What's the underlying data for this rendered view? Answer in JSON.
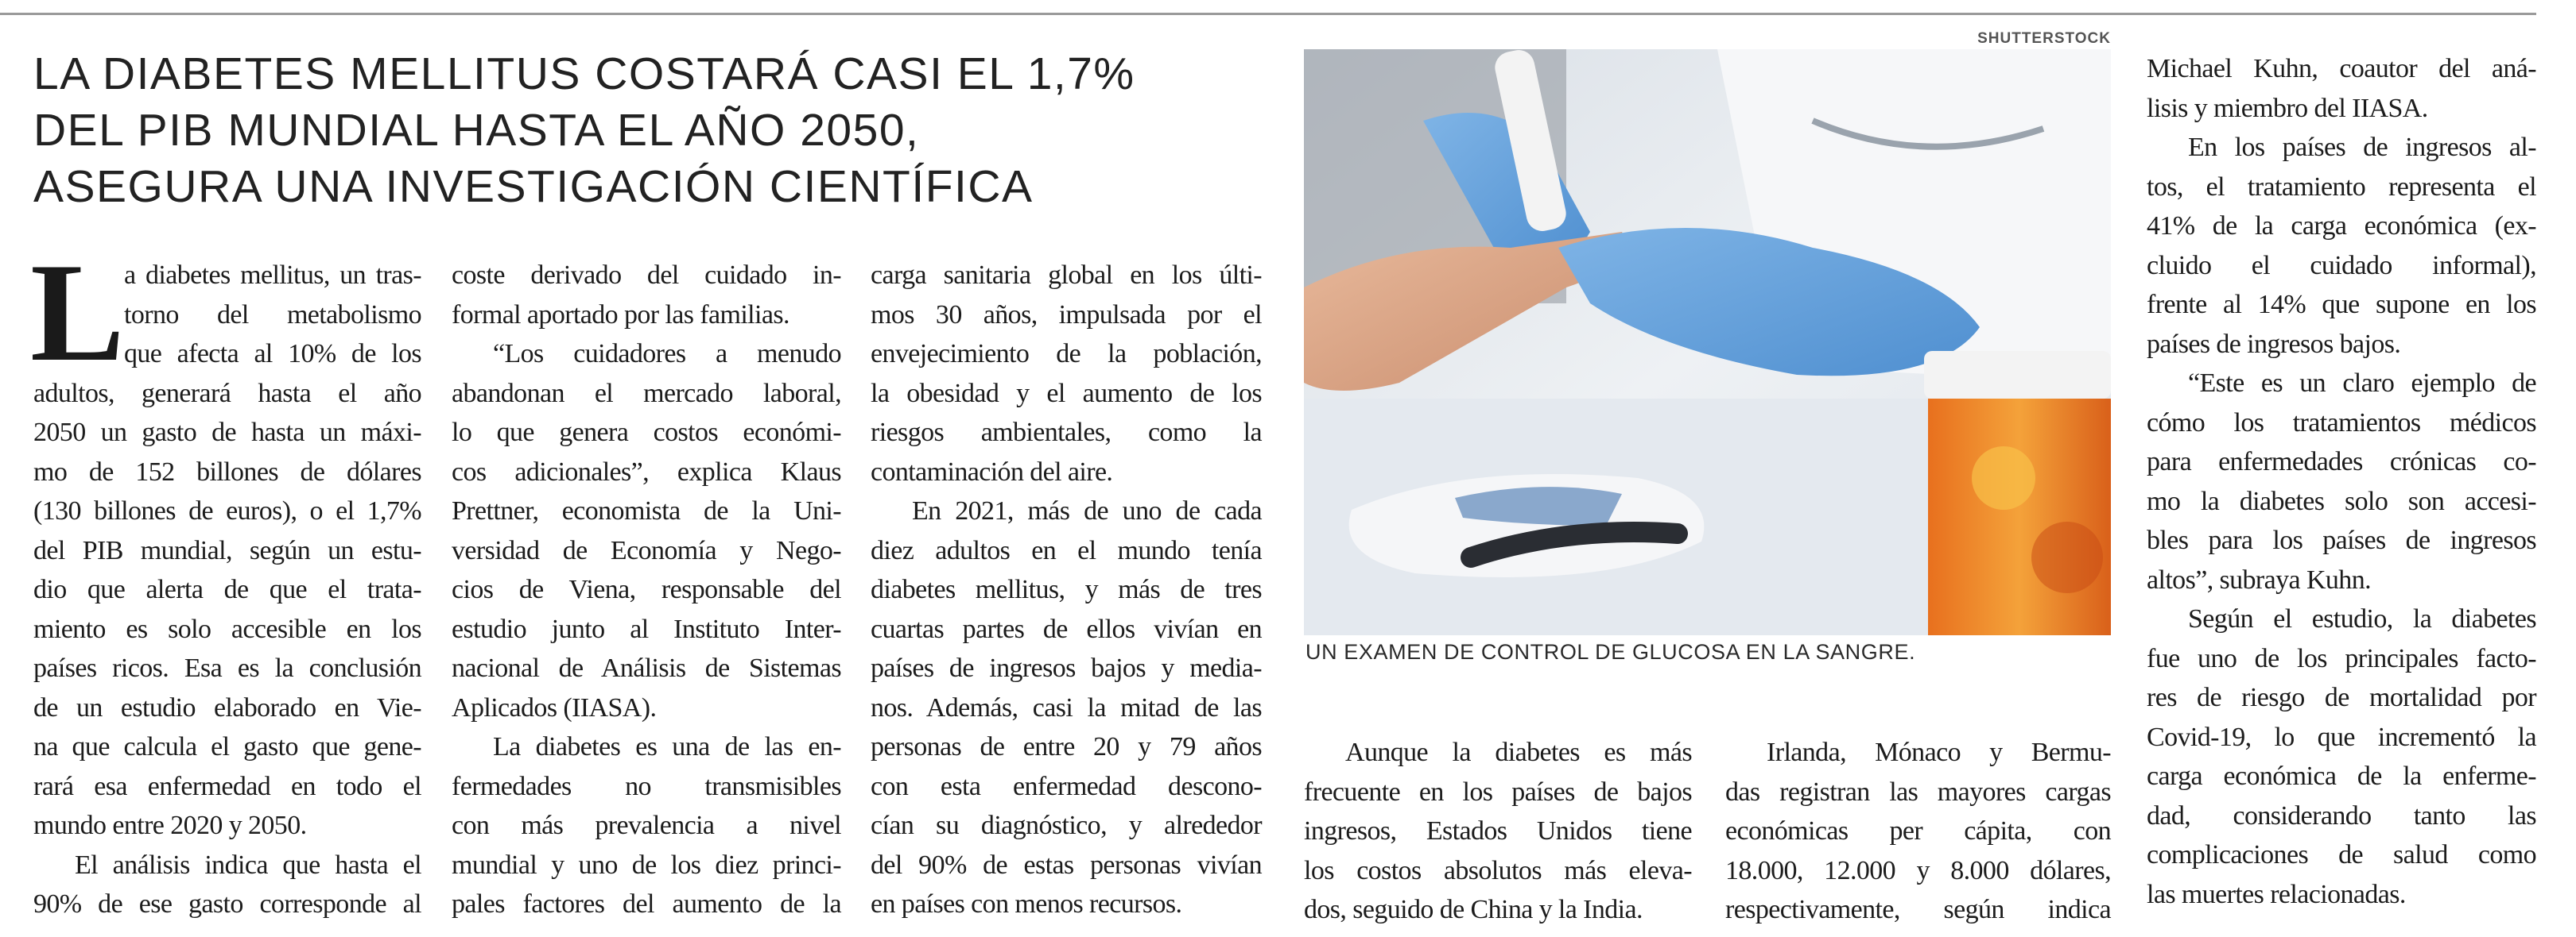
{
  "headline": [
    "LA DIABETES MELLITUS COSTARÁ CASI EL 1,7%",
    "DEL PIB MUNDIAL HASTA EL AÑO 2050,",
    "ASEGURA UNA INVESTIGACIÓN CIENTÍFICA"
  ],
  "dropcap": "L",
  "photo": {
    "credit": "SHUTTERSTOCK",
    "caption": "UN EXAMEN DE CONTROL DE GLUCOSA EN LA SANGRE."
  },
  "columns": [
    [
      {
        "t": "a diabetes mellitus, un tras-",
        "k": "drop"
      },
      {
        "t": "torno del metabolismo",
        "k": "drop"
      },
      {
        "t": "que afecta al 10% de los",
        "k": "drop"
      },
      {
        "t": "adultos, generará hasta el año"
      },
      {
        "t": "2050 un gasto de hasta un máxi-"
      },
      {
        "t": "mo de 152 billones de dólares"
      },
      {
        "t": "(130 billones de euros), o el 1,7%"
      },
      {
        "t": "del PIB mundial, según un estu-"
      },
      {
        "t": "dio que alerta de que el trata-"
      },
      {
        "t": "miento es solo accesible en los"
      },
      {
        "t": "países ricos. Esa es la conclusión"
      },
      {
        "t": "de un estudio elaborado en Vie-"
      },
      {
        "t": "na que calcula el gasto que gene-"
      },
      {
        "t": "rará esa enfermedad en todo el"
      },
      {
        "t": "mundo entre 2020 y 2050.",
        "k": "end"
      },
      {
        "t": "El análisis indica que hasta el",
        "k": "indent"
      },
      {
        "t": "90% de ese gasto corresponde al"
      }
    ],
    [
      {
        "t": "coste derivado del cuidado in-"
      },
      {
        "t": "formal aportado por las familias.",
        "k": "end"
      },
      {
        "t": "“Los cuidadores a menudo",
        "k": "indent"
      },
      {
        "t": "abandonan el mercado laboral,"
      },
      {
        "t": "lo que genera costos económi-"
      },
      {
        "t": "cos adicionales”, explica Klaus"
      },
      {
        "t": "Prettner, economista de la Uni-"
      },
      {
        "t": "versidad de Economía y Nego-"
      },
      {
        "t": "cios de Viena, responsable del"
      },
      {
        "t": "estudio junto al Instituto Inter-"
      },
      {
        "t": "nacional de Análisis de Sistemas"
      },
      {
        "t": "Aplicados (IIASA).",
        "k": "end"
      },
      {
        "t": "La diabetes es una de las en-",
        "k": "indent"
      },
      {
        "t": "fermedades no transmisibles"
      },
      {
        "t": "con más prevalencia a nivel"
      },
      {
        "t": "mundial y uno de los diez princi-"
      },
      {
        "t": "pales factores del aumento de la"
      }
    ],
    [
      {
        "t": "carga sanitaria global en los últi-"
      },
      {
        "t": "mos 30 años, impulsada por el"
      },
      {
        "t": "envejecimiento de la población,"
      },
      {
        "t": "la obesidad y el aumento de los"
      },
      {
        "t": "riesgos ambientales, como la"
      },
      {
        "t": "contaminación del aire.",
        "k": "end"
      },
      {
        "t": "En 2021, más de uno de cada",
        "k": "indent"
      },
      {
        "t": "diez adultos en el mundo tenía"
      },
      {
        "t": "diabetes mellitus, y más de tres"
      },
      {
        "t": "cuartas partes de ellos vivían en"
      },
      {
        "t": "países de ingresos bajos y media-"
      },
      {
        "t": "nos. Además, casi la mitad de las"
      },
      {
        "t": "personas de entre 20 y 79 años"
      },
      {
        "t": "con esta enfermedad descono-"
      },
      {
        "t": "cían su diagnóstico, y alrededor"
      },
      {
        "t": "del 90% de estas personas vivían"
      },
      {
        "t": "en países con menos recursos.",
        "k": "end"
      }
    ],
    [
      {
        "t": "Aunque la diabetes es más",
        "k": "indent"
      },
      {
        "t": "frecuente en los países de bajos"
      },
      {
        "t": "ingresos, Estados Unidos tiene"
      },
      {
        "t": "los costos absolutos más eleva-"
      },
      {
        "t": "dos, seguido de China y la India.",
        "k": "end"
      }
    ],
    [
      {
        "t": "Irlanda, Mónaco y Bermu-",
        "k": "indent"
      },
      {
        "t": "das registran las mayores cargas"
      },
      {
        "t": "económicas per cápita, con"
      },
      {
        "t": "18.000, 12.000 y 8.000 dólares,"
      },
      {
        "t": "respectivamente, según indica"
      }
    ],
    [
      {
        "t": "Michael Kuhn, coautor del aná-"
      },
      {
        "t": "lisis y miembro del IIASA.",
        "k": "end"
      },
      {
        "t": "En los países de ingresos al-",
        "k": "indent"
      },
      {
        "t": "tos, el tratamiento representa el"
      },
      {
        "t": "41% de la carga económica (ex-"
      },
      {
        "t": "cluido el cuidado informal),"
      },
      {
        "t": "frente al 14% que supone en los"
      },
      {
        "t": "países de ingresos bajos.",
        "k": "end"
      },
      {
        "t": "“Este es un claro ejemplo de",
        "k": "indent"
      },
      {
        "t": "cómo los tratamientos médicos"
      },
      {
        "t": "para enfermedades crónicas co-"
      },
      {
        "t": "mo la diabetes solo son accesi-"
      },
      {
        "t": "bles para los países de ingresos"
      },
      {
        "t": "altos”, subraya Kuhn.",
        "k": "end"
      },
      {
        "t": "Según el estudio, la diabetes",
        "k": "indent"
      },
      {
        "t": "fue uno de los principales facto-"
      },
      {
        "t": "res de riesgo de mortalidad por"
      },
      {
        "t": "Covid-19, lo que incrementó la"
      },
      {
        "t": "carga económica de la enferme-"
      },
      {
        "t": "dad, considerando tanto las"
      },
      {
        "t": "complicaciones de salud como"
      },
      {
        "t": "las muertes relacionadas.",
        "k": "end"
      }
    ]
  ]
}
